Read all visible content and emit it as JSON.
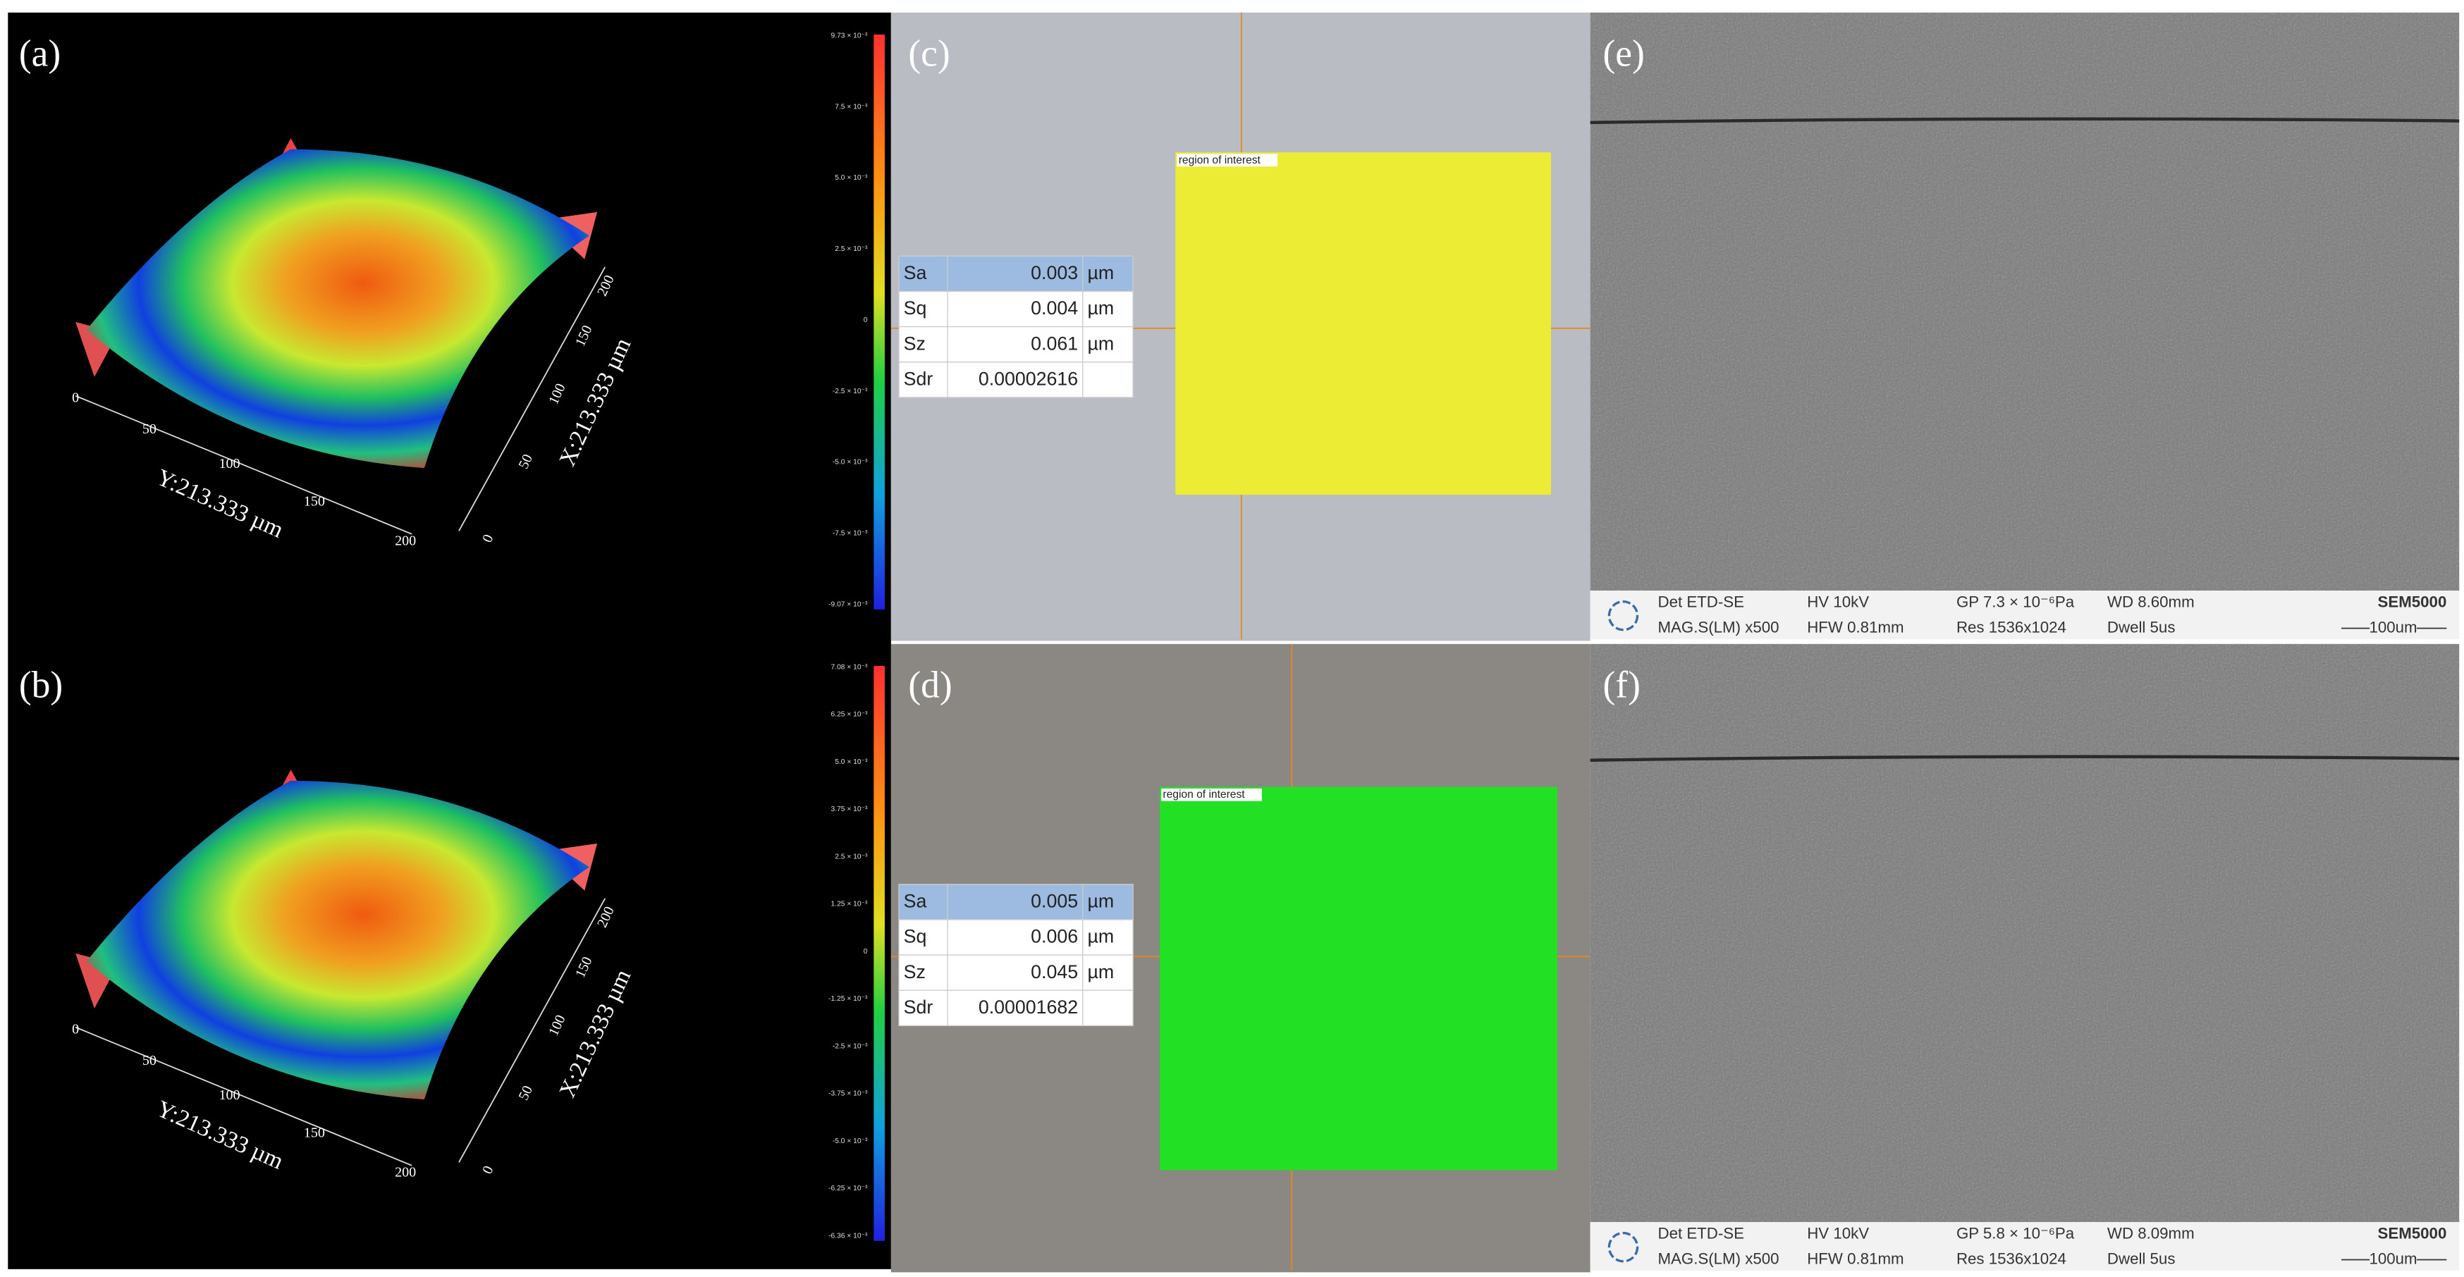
{
  "panels": [
    {
      "label": "(a)",
      "y_axis_label": "Y:213.333 µm",
      "x_axis_label": "X:213.333 µm",
      "y_ticks": [
        "0",
        "50",
        "100",
        "150",
        "200"
      ],
      "x_ticks": [
        "0",
        "50",
        "100",
        "150",
        "200"
      ],
      "colorbar": [
        "9.73 × 10⁻³",
        "7.5 × 10⁻³",
        "5.0 × 10⁻³",
        "2.5 × 10⁻³",
        "0",
        "-2.5 × 10⁻³",
        "-5.0 × 10⁻³",
        "-7.5 × 10⁻³",
        "-9.07 × 10⁻³"
      ]
    },
    {
      "label": "(b)",
      "y_axis_label": "Y:213.333 µm",
      "x_axis_label": "X:213.333 µm",
      "y_ticks": [
        "0",
        "50",
        "100",
        "150",
        "200"
      ],
      "x_ticks": [
        "0",
        "50",
        "100",
        "150",
        "200"
      ],
      "colorbar": [
        "7.08 × 10⁻³",
        "6.25 × 10⁻³",
        "5.0 × 10⁻³",
        "3.75 × 10⁻³",
        "2.5 × 10⁻³",
        "1.25 × 10⁻³",
        "0",
        "-1.25 × 10⁻³",
        "-2.5 × 10⁻³",
        "-3.75 × 10⁻³",
        "-5.0 × 10⁻³",
        "-6.25 × 10⁻³",
        "-6.36 × 10⁻³"
      ]
    },
    {
      "label": "(c)",
      "roi_label": "region of interest",
      "table": [
        [
          "Sa",
          "0.003",
          "µm"
        ],
        [
          "Sq",
          "0.004",
          "µm"
        ],
        [
          "Sz",
          "0.061",
          "µm"
        ],
        [
          "Sdr",
          "0.00002616",
          ""
        ]
      ]
    },
    {
      "label": "(d)",
      "roi_label": "region of interest",
      "table": [
        [
          "Sa",
          "0.005",
          "µm"
        ],
        [
          "Sq",
          "0.006",
          "µm"
        ],
        [
          "Sz",
          "0.045",
          "µm"
        ],
        [
          "Sdr",
          "0.00001682",
          ""
        ]
      ]
    },
    {
      "label": "(e)",
      "footer": [
        [
          "Det ETD-SE",
          "HV 10kV",
          "GP 7.3 × 10⁻⁶Pa",
          "WD 8.60mm",
          "SEM5000"
        ],
        [
          "MAG.S(LM) x500",
          "HFW 0.81mm",
          "Res 1536x1024",
          "Dwell 5us",
          "100um"
        ]
      ]
    },
    {
      "label": "(f)",
      "footer": [
        [
          "Det ETD-SE",
          "HV 10kV",
          "GP 5.8 × 10⁻⁶Pa",
          "WD 8.09mm",
          "SEM5000"
        ],
        [
          "MAG.S(LM) x500",
          "HFW 0.81mm",
          "Res 1536x1024",
          "Dwell 5us",
          "100um"
        ]
      ]
    }
  ]
}
